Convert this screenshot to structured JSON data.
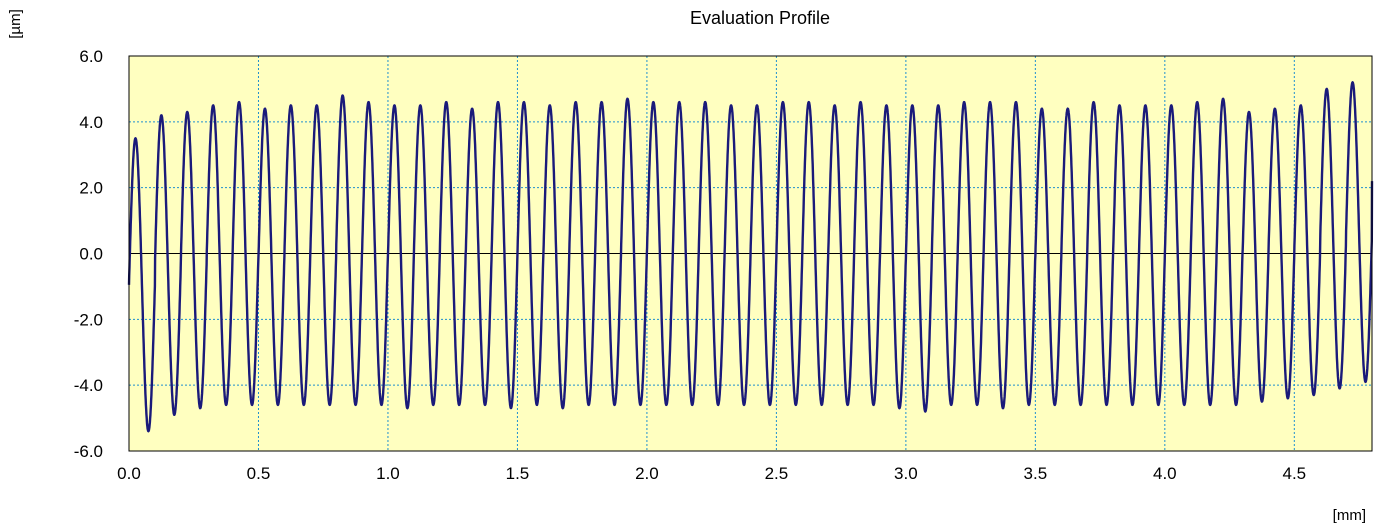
{
  "chart_data": {
    "type": "line",
    "title": "Evaluation Profile",
    "ylabel": "[µm]",
    "xlabel": "[mm]",
    "xlim": [
      0,
      4.8
    ],
    "ylim": [
      -6,
      6
    ],
    "x_ticks": [
      0.0,
      0.5,
      1.0,
      1.5,
      2.0,
      2.5,
      3.0,
      3.5,
      4.0,
      4.5
    ],
    "x_tick_labels": [
      "0.0",
      "0.5",
      "1.0",
      "1.5",
      "2.0",
      "2.5",
      "3.0",
      "3.5",
      "4.0",
      "4.5"
    ],
    "y_ticks": [
      -6,
      -4,
      -2,
      0,
      2,
      4,
      6
    ],
    "y_tick_labels": [
      "-6.0",
      "-4.0",
      "-2.0",
      "0.0",
      "2.0",
      "4.0",
      "6.0"
    ],
    "grid": true,
    "colors": {
      "plot_background": "#ffffc0",
      "grid": "#1e8fd0",
      "line": "#1a1a7a",
      "zero_line": "#000000"
    },
    "series": [
      {
        "x_start": 0.0,
        "x_end": 4.8,
        "period": 0.1,
        "phase": 0.0,
        "peaks": [
          3.5,
          4.2,
          4.3,
          4.5,
          4.6,
          4.4,
          4.5,
          4.5,
          4.8,
          4.6,
          4.5,
          4.5,
          4.6,
          4.4,
          4.6,
          4.6,
          4.5,
          4.6,
          4.6,
          4.7,
          4.6,
          4.6,
          4.6,
          4.5,
          4.5,
          4.6,
          4.6,
          4.5,
          4.6,
          4.5,
          4.5,
          4.5,
          4.6,
          4.6,
          4.6,
          4.4,
          4.4,
          4.6,
          4.5,
          4.5,
          4.5,
          4.6,
          4.7,
          4.3,
          4.4,
          4.5,
          5.0,
          5.2
        ],
        "valleys": [
          -5.4,
          -4.9,
          -4.7,
          -4.6,
          -4.6,
          -4.6,
          -4.6,
          -4.6,
          -4.6,
          -4.6,
          -4.7,
          -4.6,
          -4.6,
          -4.6,
          -4.7,
          -4.6,
          -4.7,
          -4.6,
          -4.6,
          -4.6,
          -4.6,
          -4.6,
          -4.6,
          -4.6,
          -4.6,
          -4.6,
          -4.6,
          -4.6,
          -4.6,
          -4.7,
          -4.8,
          -4.6,
          -4.6,
          -4.7,
          -4.6,
          -4.6,
          -4.6,
          -4.6,
          -4.6,
          -4.6,
          -4.6,
          -4.6,
          -4.6,
          -4.5,
          -4.4,
          -4.3,
          -4.1,
          -3.9
        ],
        "end_value": 2.2
      }
    ]
  }
}
